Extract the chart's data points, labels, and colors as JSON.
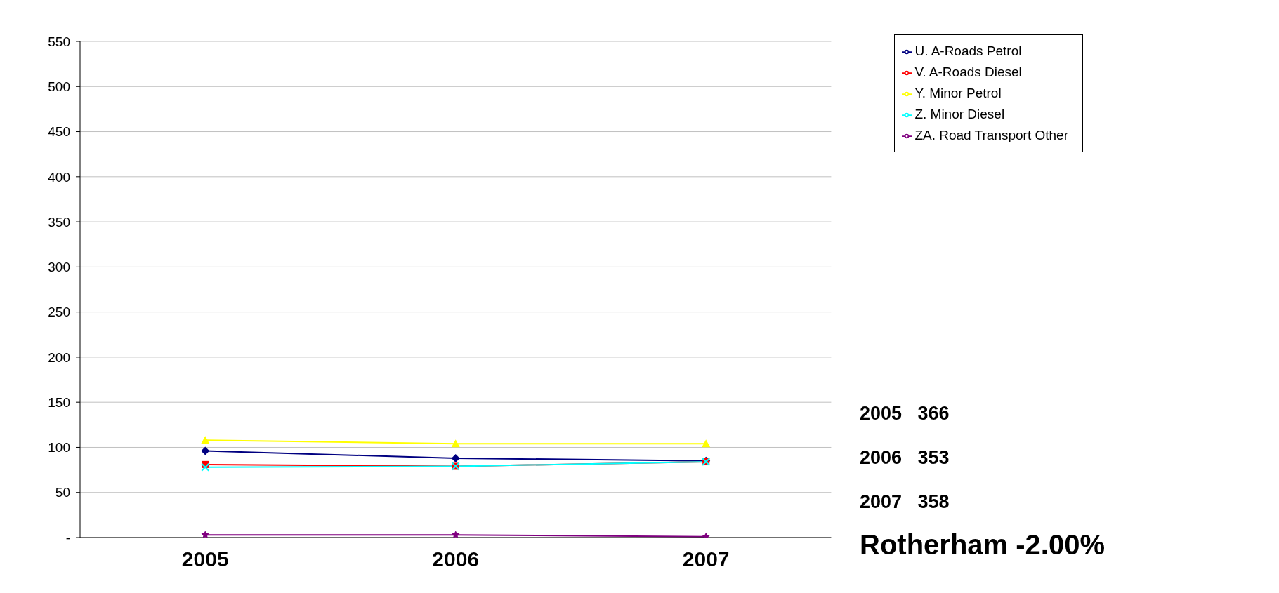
{
  "chart_data": {
    "type": "line",
    "categories": [
      "2005",
      "2006",
      "2007"
    ],
    "series": [
      {
        "name": "U. A-Roads Petrol",
        "color": "#000080",
        "marker": "diamond",
        "values": [
          96,
          88,
          85
        ]
      },
      {
        "name": "V. A-Roads Diesel",
        "color": "#ff0000",
        "marker": "square",
        "values": [
          81,
          79,
          84
        ]
      },
      {
        "name": "Y. Minor Petrol",
        "color": "#ffff00",
        "marker": "triangle",
        "values": [
          108,
          104,
          104
        ]
      },
      {
        "name": "Z. Minor Diesel",
        "color": "#00ffff",
        "marker": "cross",
        "values": [
          78,
          79,
          84
        ]
      },
      {
        "name": "ZA. Road Transport Other",
        "color": "#800080",
        "marker": "star",
        "values": [
          3,
          3,
          1
        ]
      }
    ],
    "ylim": [
      0,
      550
    ],
    "yticks": [
      {
        "value": 0,
        "label": "-"
      },
      50,
      100,
      150,
      200,
      250,
      300,
      350,
      400,
      450,
      500,
      550
    ],
    "grid": "y",
    "legend": "top right",
    "annotations": [
      "2005   366",
      "2006   353",
      "2007   358",
      "Rotherham -2.00%"
    ]
  }
}
